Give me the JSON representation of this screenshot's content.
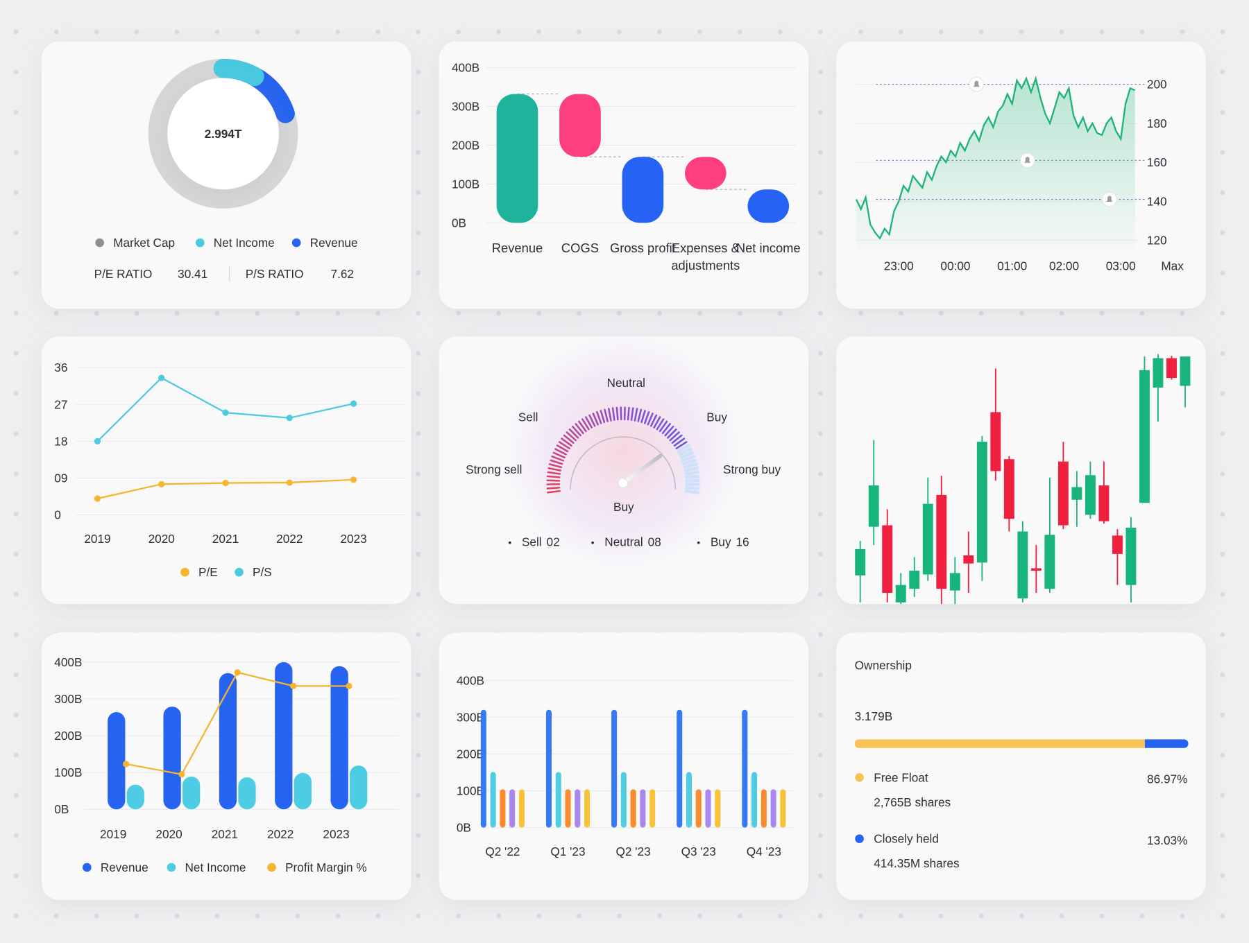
{
  "chart_data": [
    {
      "type": "donut",
      "center_label": "2.994T",
      "categories": [
        "Market Cap",
        "Net Income",
        "Revenue"
      ],
      "values": [
        100,
        8,
        20
      ],
      "colors": [
        "#8d8e93",
        "#48c9e0",
        "#2563f0"
      ],
      "stats": [
        {
          "name": "P/E RATIO",
          "value": 30.41
        },
        {
          "name": "P/S RATIO",
          "value": 7.62
        }
      ]
    },
    {
      "type": "waterfall",
      "categories": [
        "Revenue",
        "COGS",
        "Gross profit",
        "Expenses & adjustments",
        "Net income"
      ],
      "values": [
        332,
        -162,
        170,
        -84,
        86
      ],
      "is_total": [
        true,
        false,
        true,
        false,
        true
      ],
      "colors": [
        "#20b39b",
        "#fe3f7f",
        "#2663f5",
        "#fe3f7f",
        "#2663f5"
      ],
      "ylim": [
        0,
        400
      ],
      "yticks": [
        {
          "value": 0,
          "label": "0B"
        },
        {
          "value": 100,
          "label": "100B"
        },
        {
          "value": 200,
          "label": "200B"
        },
        {
          "value": 300,
          "label": "300B"
        },
        {
          "value": 400,
          "label": "400B"
        }
      ]
    },
    {
      "type": "area-line",
      "color": "#1db374",
      "categories": [
        null,
        null,
        null,
        null,
        null,
        null,
        null,
        null,
        null,
        "23:00",
        null,
        null,
        null,
        null,
        null,
        null,
        null,
        null,
        null,
        null,
        null,
        "00:00",
        null,
        null,
        null,
        null,
        null,
        null,
        null,
        null,
        null,
        null,
        null,
        "01:00",
        null,
        null,
        null,
        null,
        null,
        null,
        null,
        null,
        null,
        null,
        "02:00",
        null,
        null,
        null,
        null,
        null,
        null,
        null,
        null,
        null,
        null,
        null,
        "03:00",
        null,
        null,
        null
      ],
      "values": [
        141,
        136,
        142,
        128,
        124,
        121,
        126,
        123,
        135,
        140,
        148,
        145,
        153,
        150,
        147,
        155,
        151,
        158,
        163,
        160,
        166,
        163,
        170,
        166,
        172,
        176,
        171,
        179,
        183,
        178,
        186,
        189,
        195,
        190,
        202,
        198,
        203,
        196,
        203,
        193,
        185,
        180,
        188,
        196,
        193,
        198,
        184,
        178,
        183,
        176,
        180,
        175,
        174,
        180,
        183,
        176,
        172,
        190,
        198,
        197
      ],
      "ylim": [
        115,
        205
      ],
      "yticks": [
        120,
        140,
        160,
        180,
        200
      ],
      "alerts": [
        200,
        161,
        141
      ],
      "range_button": "Max"
    },
    {
      "type": "line",
      "categories": [
        "2019",
        "2020",
        "2021",
        "2022",
        "2023"
      ],
      "series": [
        {
          "name": "P/E",
          "color": "#f6b531",
          "values": [
            4,
            7.5,
            7.8,
            7.9,
            8.6
          ]
        },
        {
          "name": "P/S",
          "color": "#4ccbe0",
          "values": [
            18,
            33.5,
            25,
            23.7,
            27.2
          ]
        }
      ],
      "ylim": [
        0,
        36
      ],
      "yticks": [
        0,
        {
          "value": 9,
          "label": "09"
        },
        18,
        27,
        36
      ]
    },
    {
      "type": "gauge",
      "zones": [
        "Strong sell",
        "Sell",
        "Neutral",
        "Buy",
        "Strong buy"
      ],
      "reading": "Buy",
      "needle": 0.8,
      "categories": [
        "Sell",
        "Neutral",
        "Buy"
      ],
      "values": [
        2,
        8,
        16
      ],
      "value_labels": [
        "02",
        "08",
        "16"
      ]
    },
    {
      "type": "candlestick",
      "up_color": "#17b57c",
      "down_color": "#f0213f",
      "ylim": [
        0,
        105
      ],
      "open": [
        12.3,
        32.7,
        33.3,
        1,
        6.7,
        12.7,
        46,
        6,
        20.7,
        17.7,
        80.7,
        61,
        2.7,
        15.3,
        6.7,
        60,
        44,
        37.7,
        50,
        29,
        8.3,
        42.7,
        91,
        103.3,
        91.7
      ],
      "high": [
        26.7,
        69,
        40,
        13.3,
        20,
        53.3,
        54,
        20,
        30.7,
        70.7,
        99,
        62.3,
        35,
        25,
        53.3,
        68.3,
        56,
        60,
        60,
        31.7,
        36.7,
        104,
        105,
        104.3,
        104
      ],
      "low": [
        1,
        25,
        1,
        0,
        3.3,
        10,
        0,
        0,
        5,
        10,
        52,
        30.7,
        1,
        5,
        5,
        31.7,
        32.7,
        36,
        34,
        8.3,
        1,
        42.7,
        76.7,
        94.3,
        82.7
      ],
      "close": [
        23.3,
        50,
        5,
        8.3,
        14.3,
        42.3,
        6.7,
        13.3,
        17.3,
        68.3,
        56,
        36,
        30.7,
        14.3,
        29.3,
        33.3,
        49.3,
        54.3,
        35,
        21.3,
        32.3,
        98.3,
        103.3,
        95,
        104
      ]
    },
    {
      "type": "bar-line",
      "categories": [
        "2019",
        "2020",
        "2021",
        "2022",
        "2023"
      ],
      "series": [
        {
          "name": "Revenue",
          "color": "#2563f0",
          "values": [
            264,
            279,
            370,
            400,
            389
          ]
        },
        {
          "name": "Net Income",
          "color": "#4dcde3",
          "values": [
            67,
            89,
            87,
            99,
            119
          ]
        },
        {
          "name": "Profit Margin %",
          "color": "#f6b531",
          "values": [
            123,
            95,
            372,
            335,
            335
          ],
          "kind": "line"
        }
      ],
      "ylim": [
        0,
        400
      ],
      "yticks": [
        {
          "value": 0,
          "label": "0B"
        },
        {
          "value": 100,
          "label": "100B"
        },
        {
          "value": 200,
          "label": "200B"
        },
        {
          "value": 300,
          "label": "300B"
        },
        {
          "value": 400,
          "label": "400B"
        }
      ]
    },
    {
      "type": "grouped-bar",
      "categories": [
        "Q2 '22",
        "Q1 '23",
        "Q2 '23",
        "Q3 '23",
        "Q4 '23"
      ],
      "series": [
        {
          "color": "#3579f6",
          "values": [
            320,
            320,
            320,
            320,
            320
          ]
        },
        {
          "color": "#4fcde3",
          "values": [
            151,
            151,
            151,
            151,
            151
          ]
        },
        {
          "color": "#fb8a2a",
          "values": [
            104,
            104,
            104,
            104,
            104
          ]
        },
        {
          "color": "#a987f0",
          "values": [
            104,
            104,
            104,
            104,
            104
          ]
        },
        {
          "color": "#f7c338",
          "values": [
            104,
            104,
            104,
            104,
            104
          ]
        }
      ],
      "ylim": [
        0,
        400
      ],
      "yticks": [
        {
          "value": 0,
          "label": "0B"
        },
        {
          "value": 100,
          "label": "100B"
        },
        {
          "value": 200,
          "label": "200B"
        },
        {
          "value": 300,
          "label": "300B"
        },
        {
          "value": 400,
          "label": "400B"
        }
      ]
    }
  ],
  "ownership": {
    "title": "Ownership",
    "total": "3.179B",
    "items": [
      {
        "name": "Free Float",
        "value": 86.97,
        "value_label": "86.97%",
        "detail": "2,765B shares",
        "color": "#f7c356"
      },
      {
        "name": "Closely held",
        "value": 13.03,
        "value_label": "13.03%",
        "detail": "414.35M shares",
        "color": "#2563f0"
      }
    ]
  }
}
